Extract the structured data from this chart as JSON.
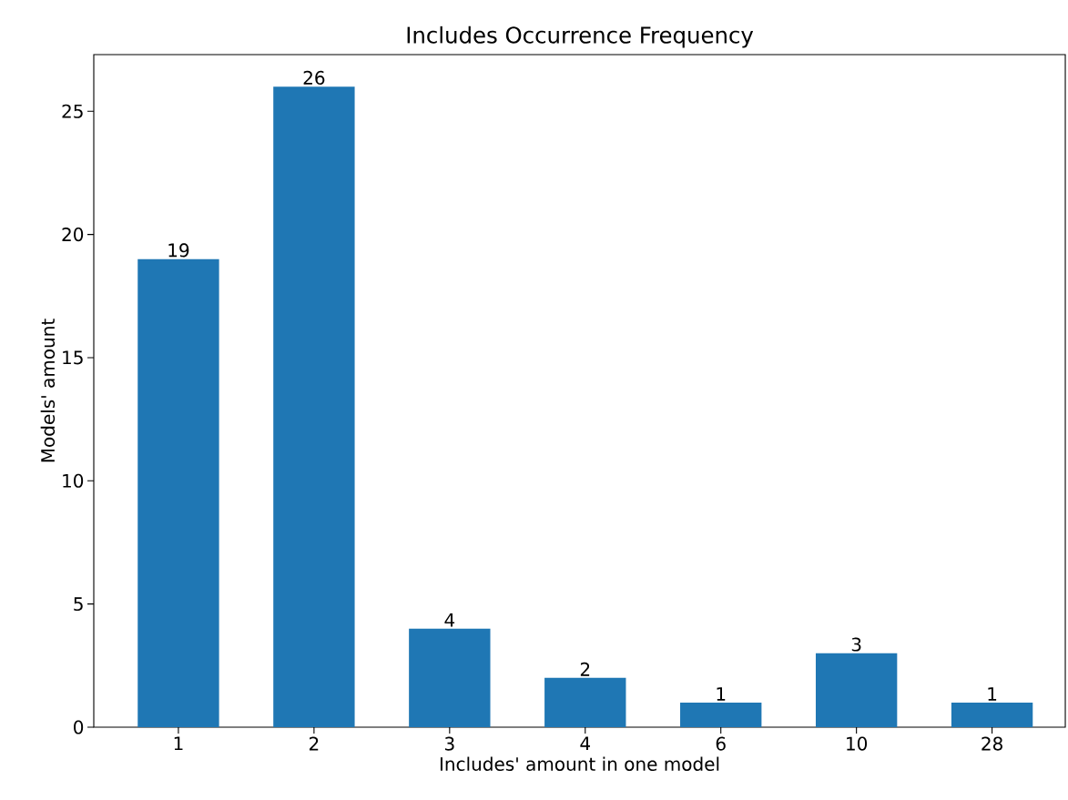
{
  "chart_data": {
    "type": "bar",
    "title": "Includes Occurrence Frequency",
    "xlabel": "Includes' amount in one model",
    "ylabel": "Models' amount",
    "categories": [
      "1",
      "2",
      "3",
      "4",
      "6",
      "10",
      "28"
    ],
    "values": [
      19,
      26,
      4,
      2,
      1,
      3,
      1
    ],
    "color": "#1f77b4",
    "data_labels": true,
    "ylim": [
      0,
      27.3
    ],
    "yticks": [
      0,
      5,
      10,
      15,
      20,
      25
    ]
  }
}
